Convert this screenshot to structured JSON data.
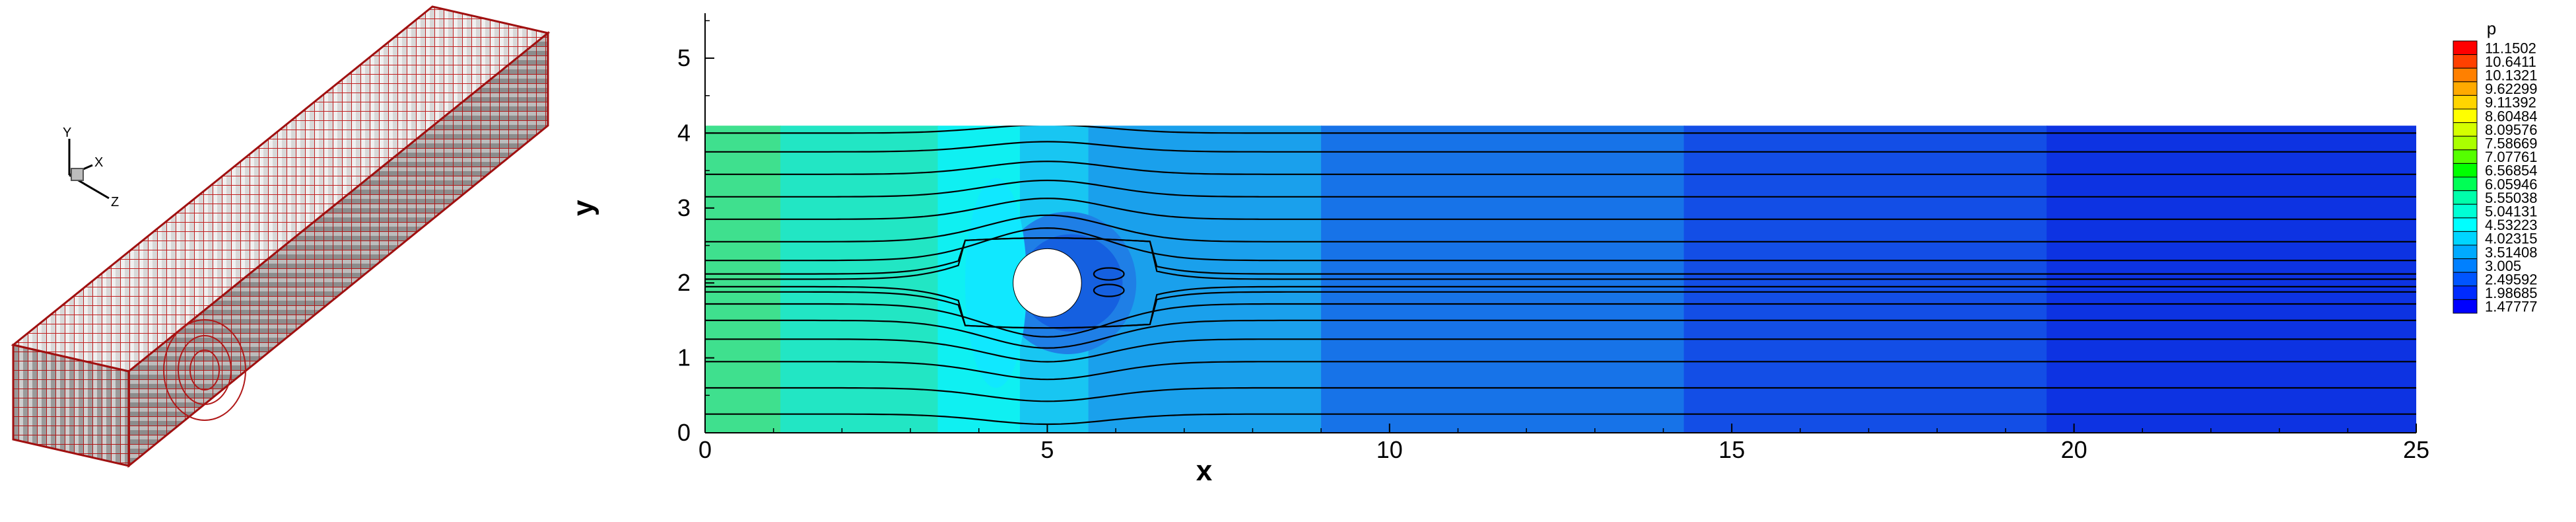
{
  "mesh_panel": {
    "triad": {
      "y_label": "Y",
      "x_label": "X",
      "z_label": "Z"
    }
  },
  "plot": {
    "xlabel": "x",
    "ylabel": "y",
    "x_ticks": [
      "0",
      "5",
      "10",
      "15",
      "20",
      "25"
    ],
    "y_ticks": [
      "0",
      "1",
      "2",
      "3",
      "4",
      "5"
    ],
    "xlim": [
      0,
      25
    ],
    "ylim": [
      0,
      5.6
    ],
    "domain_height": 4.1,
    "cylinder": {
      "center": [
        5,
        2.0
      ],
      "radius": 0.5
    }
  },
  "colorbar": {
    "title": "p",
    "levels": [
      "11.1502",
      "10.6411",
      "10.1321",
      "9.62299",
      "9.11392",
      "8.60484",
      "8.09576",
      "7.58669",
      "7.07761",
      "6.56854",
      "6.05946",
      "5.55038",
      "5.04131",
      "4.53223",
      "4.02315",
      "3.51408",
      "3.005",
      "2.49592",
      "1.98685",
      "1.47777"
    ],
    "colors": [
      "#ff0000",
      "#ff4000",
      "#ff8000",
      "#ffaa00",
      "#ffd500",
      "#ffff00",
      "#d5ff00",
      "#aaff00",
      "#55ff00",
      "#00ff00",
      "#00ff55",
      "#00ffaa",
      "#00ffd5",
      "#00ffff",
      "#00d5ff",
      "#00aaff",
      "#0080ff",
      "#0055ff",
      "#002bff",
      "#0000ff"
    ]
  },
  "contour_bands": [
    {
      "x0": 0,
      "x1": 1.1,
      "color": "#3fe08e"
    },
    {
      "x0": 1.1,
      "x1": 3.4,
      "color": "#22e6c4"
    },
    {
      "x0": 3.4,
      "x1": 4.6,
      "color": "#0ff0f2"
    },
    {
      "x0": 4.6,
      "x1": 5.6,
      "color": "#18c6f2"
    },
    {
      "x0": 5.6,
      "x1": 9.0,
      "color": "#1aa0ec"
    },
    {
      "x0": 9.0,
      "x1": 14.3,
      "color": "#1773e8"
    },
    {
      "x0": 14.3,
      "x1": 19.6,
      "color": "#134ee6"
    },
    {
      "x0": 19.6,
      "x1": 25,
      "color": "#0d33e2"
    }
  ],
  "streamline_y": [
    0.25,
    0.6,
    0.95,
    1.25,
    1.5,
    1.72,
    1.88,
    1.95,
    2.05,
    2.12,
    2.3,
    2.55,
    2.85,
    3.15,
    3.45,
    3.75,
    4.0
  ]
}
